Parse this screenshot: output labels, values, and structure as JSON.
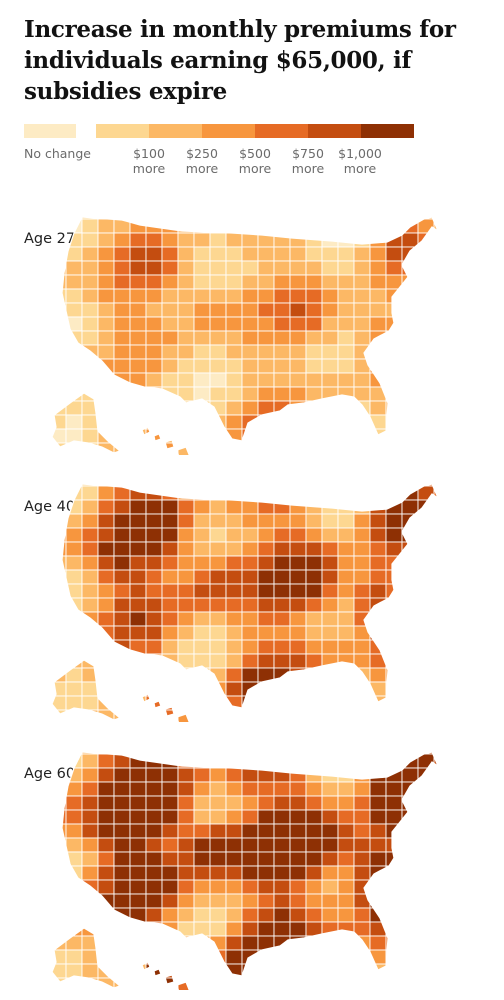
{
  "title": "Increase in monthly premiums for individuals earning $65,000, if subsidies expire",
  "legend": {
    "no_change": {
      "label": "No change",
      "color": "#fdebc4"
    },
    "bins": [
      {
        "line1": "$100",
        "line2": "more",
        "color": "#fdd791"
      },
      {
        "line1": "$250",
        "line2": "more",
        "color": "#fcb865"
      },
      {
        "line1": "$500",
        "line2": "more",
        "color": "#f7963e"
      },
      {
        "line1": "$750",
        "line2": "more",
        "color": "#e66b25"
      },
      {
        "line1": "$1,000",
        "line2": "more",
        "color": "#c44d10"
      },
      {
        "line1": "",
        "line2": "",
        "color": "#8e3004"
      }
    ]
  },
  "panels": [
    {
      "label": "Age 27",
      "level_scale": 0.45
    },
    {
      "label": "Age 40",
      "level_scale": 0.75
    },
    {
      "label": "Age 60",
      "level_scale": 1.0
    }
  ]
}
